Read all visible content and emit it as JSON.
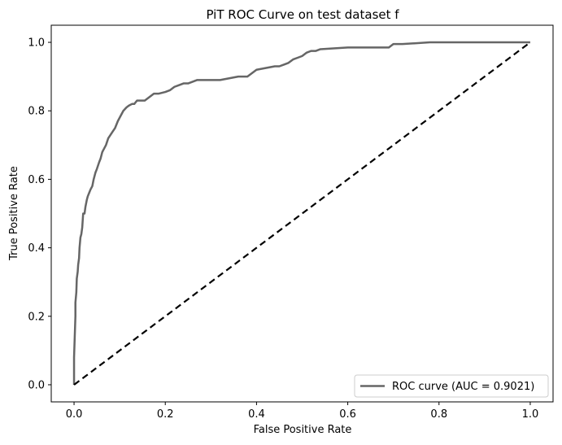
{
  "chart_data": {
    "type": "line",
    "title": "PiT ROC Curve on test dataset f",
    "xlabel": "False Positive Rate",
    "ylabel": "True Positive Rate",
    "xlim": [
      -0.05,
      1.05
    ],
    "ylim": [
      -0.05,
      1.05
    ],
    "xticks": [
      0.0,
      0.2,
      0.4,
      0.6,
      0.8,
      1.0
    ],
    "yticks": [
      0.0,
      0.2,
      0.4,
      0.6,
      0.8,
      1.0
    ],
    "xtick_labels": [
      "0.0",
      "0.2",
      "0.4",
      "0.6",
      "0.8",
      "1.0"
    ],
    "ytick_labels": [
      "0.0",
      "0.2",
      "0.4",
      "0.6",
      "0.8",
      "1.0"
    ],
    "grid": false,
    "legend_position": "lower-right",
    "series": [
      {
        "name": "ROC curve (AUC = 0.9021)",
        "color": "#666666",
        "style": "solid",
        "x": [
          0.0,
          0.0,
          0.003,
          0.003,
          0.005,
          0.006,
          0.008,
          0.009,
          0.011,
          0.012,
          0.014,
          0.016,
          0.018,
          0.02,
          0.023,
          0.025,
          0.028,
          0.03,
          0.033,
          0.036,
          0.04,
          0.043,
          0.047,
          0.05,
          0.055,
          0.058,
          0.062,
          0.066,
          0.07,
          0.075,
          0.08,
          0.085,
          0.09,
          0.096,
          0.1,
          0.108,
          0.115,
          0.12,
          0.127,
          0.132,
          0.138,
          0.145,
          0.155,
          0.165,
          0.175,
          0.185,
          0.2,
          0.21,
          0.22,
          0.23,
          0.24,
          0.25,
          0.26,
          0.27,
          0.28,
          0.3,
          0.32,
          0.34,
          0.36,
          0.38,
          0.4,
          0.42,
          0.44,
          0.45,
          0.46,
          0.47,
          0.48,
          0.49,
          0.5,
          0.51,
          0.52,
          0.53,
          0.54,
          0.6,
          0.66,
          0.69,
          0.7,
          0.72,
          0.78,
          0.85,
          0.9,
          0.95,
          1.0
        ],
        "y": [
          0.0,
          0.08,
          0.2,
          0.24,
          0.27,
          0.31,
          0.33,
          0.35,
          0.37,
          0.4,
          0.43,
          0.44,
          0.46,
          0.5,
          0.5,
          0.52,
          0.54,
          0.55,
          0.56,
          0.57,
          0.58,
          0.6,
          0.62,
          0.63,
          0.65,
          0.66,
          0.68,
          0.69,
          0.7,
          0.72,
          0.73,
          0.74,
          0.75,
          0.77,
          0.78,
          0.8,
          0.81,
          0.815,
          0.82,
          0.82,
          0.83,
          0.83,
          0.83,
          0.84,
          0.85,
          0.85,
          0.855,
          0.86,
          0.87,
          0.875,
          0.88,
          0.88,
          0.885,
          0.89,
          0.89,
          0.89,
          0.89,
          0.895,
          0.9,
          0.9,
          0.92,
          0.925,
          0.93,
          0.93,
          0.935,
          0.94,
          0.95,
          0.955,
          0.96,
          0.97,
          0.975,
          0.975,
          0.98,
          0.985,
          0.985,
          0.985,
          0.995,
          0.995,
          1.0,
          1.0,
          1.0,
          1.0,
          1.0
        ]
      },
      {
        "name": "",
        "color": "#000000",
        "style": "dashed",
        "x": [
          0.0,
          1.0
        ],
        "y": [
          0.0,
          1.0
        ]
      }
    ]
  }
}
